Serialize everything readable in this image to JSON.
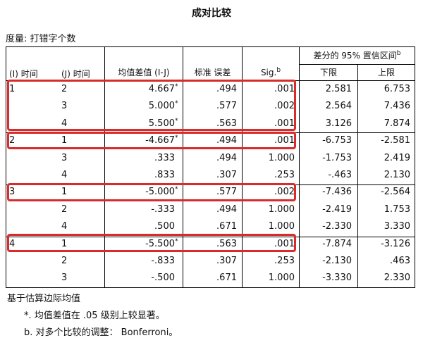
{
  "title": "成对比较",
  "measure": "度量: 打错字个数",
  "headers": {
    "i": "(I) 时间",
    "j": "(J) 时间",
    "mean_diff": "均值差值 (I-J)",
    "std_err": "标准 误差",
    "sig": "Sig.",
    "sig_sup": "b",
    "ci": "差分的 95% 置信区间",
    "ci_sup": "b",
    "lower": "下限",
    "upper": "上限"
  },
  "rows": [
    {
      "i": "1",
      "j": "2",
      "md": "4.667",
      "star": "*",
      "se": ".494",
      "sig": ".001",
      "lo": "2.581",
      "hi": "6.753"
    },
    {
      "i": "",
      "j": "3",
      "md": "5.000",
      "star": "*",
      "se": ".577",
      "sig": ".002",
      "lo": "2.564",
      "hi": "7.436"
    },
    {
      "i": "",
      "j": "4",
      "md": "5.500",
      "star": "*",
      "se": ".563",
      "sig": ".001",
      "lo": "3.126",
      "hi": "7.874"
    },
    {
      "i": "2",
      "j": "1",
      "md": "-4.667",
      "star": "*",
      "se": ".494",
      "sig": ".001",
      "lo": "-6.753",
      "hi": "-2.581"
    },
    {
      "i": "",
      "j": "3",
      "md": ".333",
      "star": "",
      "se": ".494",
      "sig": "1.000",
      "lo": "-1.753",
      "hi": "2.419"
    },
    {
      "i": "",
      "j": "4",
      "md": ".833",
      "star": "",
      "se": ".307",
      "sig": ".253",
      "lo": "-.463",
      "hi": "2.130"
    },
    {
      "i": "3",
      "j": "1",
      "md": "-5.000",
      "star": "*",
      "se": ".577",
      "sig": ".002",
      "lo": "-7.436",
      "hi": "-2.564"
    },
    {
      "i": "",
      "j": "2",
      "md": "-.333",
      "star": "",
      "se": ".494",
      "sig": "1.000",
      "lo": "-2.419",
      "hi": "1.753"
    },
    {
      "i": "",
      "j": "4",
      "md": ".500",
      "star": "",
      "se": ".671",
      "sig": "1.000",
      "lo": "-2.330",
      "hi": "3.330"
    },
    {
      "i": "4",
      "j": "1",
      "md": "-5.500",
      "star": "*",
      "se": ".563",
      "sig": ".001",
      "lo": "-7.874",
      "hi": "-3.126"
    },
    {
      "i": "",
      "j": "2",
      "md": "-.833",
      "star": "",
      "se": ".307",
      "sig": ".253",
      "lo": "-2.130",
      "hi": ".463"
    },
    {
      "i": "",
      "j": "3",
      "md": "-.500",
      "star": "",
      "se": ".671",
      "sig": "1.000",
      "lo": "-3.330",
      "hi": "2.330"
    }
  ],
  "footnotes": {
    "basis": "基于估算边际均值",
    "star_note": "*. 均值差值在 .05 级别上较显著。",
    "b_note": "b. 对多个比较的调整： Bonferroni。"
  },
  "highlight_color": "#d92b2b"
}
